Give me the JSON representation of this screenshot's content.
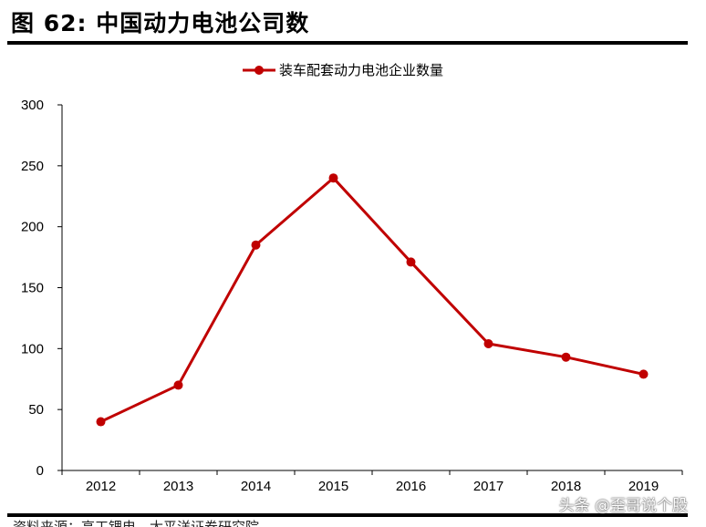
{
  "figure": {
    "title": "图 62: 中国动力电池公司数",
    "source_text": "资料来源：高工锂电，太平洋证券研究院",
    "watermark": "头条 @歪哥说个股"
  },
  "chart_data": {
    "type": "line",
    "categories": [
      "2012",
      "2013",
      "2014",
      "2015",
      "2016",
      "2017",
      "2018",
      "2019"
    ],
    "series": [
      {
        "name": "装车配套动力电池企业数量",
        "values": [
          40,
          70,
          185,
          240,
          171,
          104,
          93,
          79
        ],
        "color": "#c00000"
      }
    ],
    "ylim": [
      0,
      300
    ],
    "yticks": [
      0,
      50,
      100,
      150,
      200,
      250,
      300
    ],
    "grid": false,
    "legend": "top-center",
    "xlabel": "",
    "ylabel": ""
  }
}
